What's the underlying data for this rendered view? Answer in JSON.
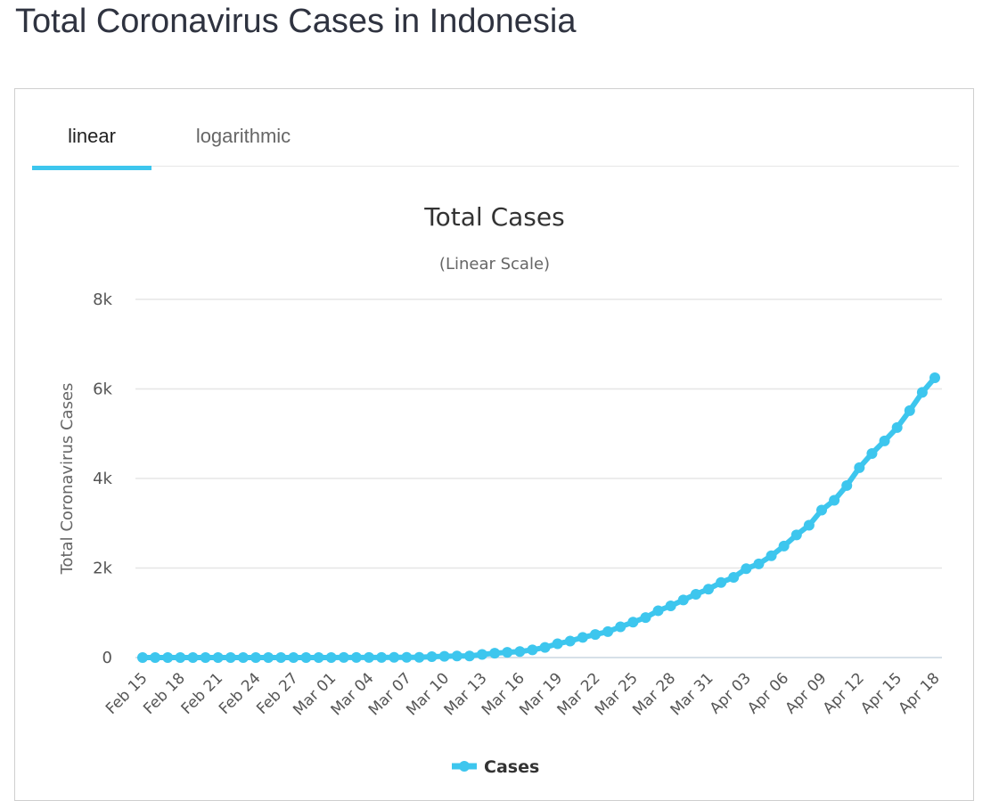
{
  "page": {
    "title": "Total Coronavirus Cases in Indonesia"
  },
  "tabs": [
    {
      "label": "linear",
      "active": true
    },
    {
      "label": "logarithmic",
      "active": false
    }
  ],
  "colors": {
    "series": "#3dc6ee",
    "active_tab_underline": "#3dc6ee",
    "grid": "#e6e6e6",
    "axis_text": "#555555",
    "title_text": "#333333"
  },
  "chart_data": {
    "type": "line",
    "title": "Total Cases",
    "subtitle": "(Linear Scale)",
    "ylabel": "Total Coronavirus Cases",
    "xlabel": "",
    "ylim": [
      0,
      8000
    ],
    "y_ticks": [
      0,
      2000,
      4000,
      6000,
      8000
    ],
    "y_tick_labels": [
      "0",
      "2k",
      "4k",
      "6k",
      "8k"
    ],
    "grid": true,
    "legend": "bottom-center",
    "x_tick_labels": [
      "Feb 15",
      "Feb 18",
      "Feb 21",
      "Feb 24",
      "Feb 27",
      "Mar 01",
      "Mar 04",
      "Mar 07",
      "Mar 10",
      "Mar 13",
      "Mar 16",
      "Mar 19",
      "Mar 22",
      "Mar 25",
      "Mar 28",
      "Mar 31",
      "Apr 03",
      "Apr 06",
      "Apr 09",
      "Apr 12",
      "Apr 15",
      "Apr 18"
    ],
    "x": [
      "Feb 15",
      "Feb 16",
      "Feb 17",
      "Feb 18",
      "Feb 19",
      "Feb 20",
      "Feb 21",
      "Feb 22",
      "Feb 23",
      "Feb 24",
      "Feb 25",
      "Feb 26",
      "Feb 27",
      "Feb 28",
      "Feb 29",
      "Mar 01",
      "Mar 02",
      "Mar 03",
      "Mar 04",
      "Mar 05",
      "Mar 06",
      "Mar 07",
      "Mar 08",
      "Mar 09",
      "Mar 10",
      "Mar 11",
      "Mar 12",
      "Mar 13",
      "Mar 14",
      "Mar 15",
      "Mar 16",
      "Mar 17",
      "Mar 18",
      "Mar 19",
      "Mar 20",
      "Mar 21",
      "Mar 22",
      "Mar 23",
      "Mar 24",
      "Mar 25",
      "Mar 26",
      "Mar 27",
      "Mar 28",
      "Mar 29",
      "Mar 30",
      "Mar 31",
      "Apr 01",
      "Apr 02",
      "Apr 03",
      "Apr 04",
      "Apr 05",
      "Apr 06",
      "Apr 07",
      "Apr 08",
      "Apr 09",
      "Apr 10",
      "Apr 11",
      "Apr 12",
      "Apr 13",
      "Apr 14",
      "Apr 15",
      "Apr 16",
      "Apr 17",
      "Apr 18"
    ],
    "series": [
      {
        "name": "Cases",
        "values": [
          0,
          0,
          0,
          0,
          0,
          0,
          0,
          0,
          0,
          0,
          0,
          0,
          0,
          0,
          0,
          0,
          2,
          2,
          2,
          2,
          4,
          4,
          6,
          19,
          27,
          34,
          34,
          69,
          96,
          117,
          134,
          172,
          227,
          309,
          369,
          450,
          514,
          579,
          686,
          790,
          893,
          1046,
          1155,
          1285,
          1414,
          1528,
          1677,
          1790,
          1986,
          2092,
          2273,
          2491,
          2738,
          2956,
          3293,
          3512,
          3842,
          4241,
          4557,
          4839,
          5136,
          5516,
          5923,
          6248
        ]
      }
    ]
  }
}
